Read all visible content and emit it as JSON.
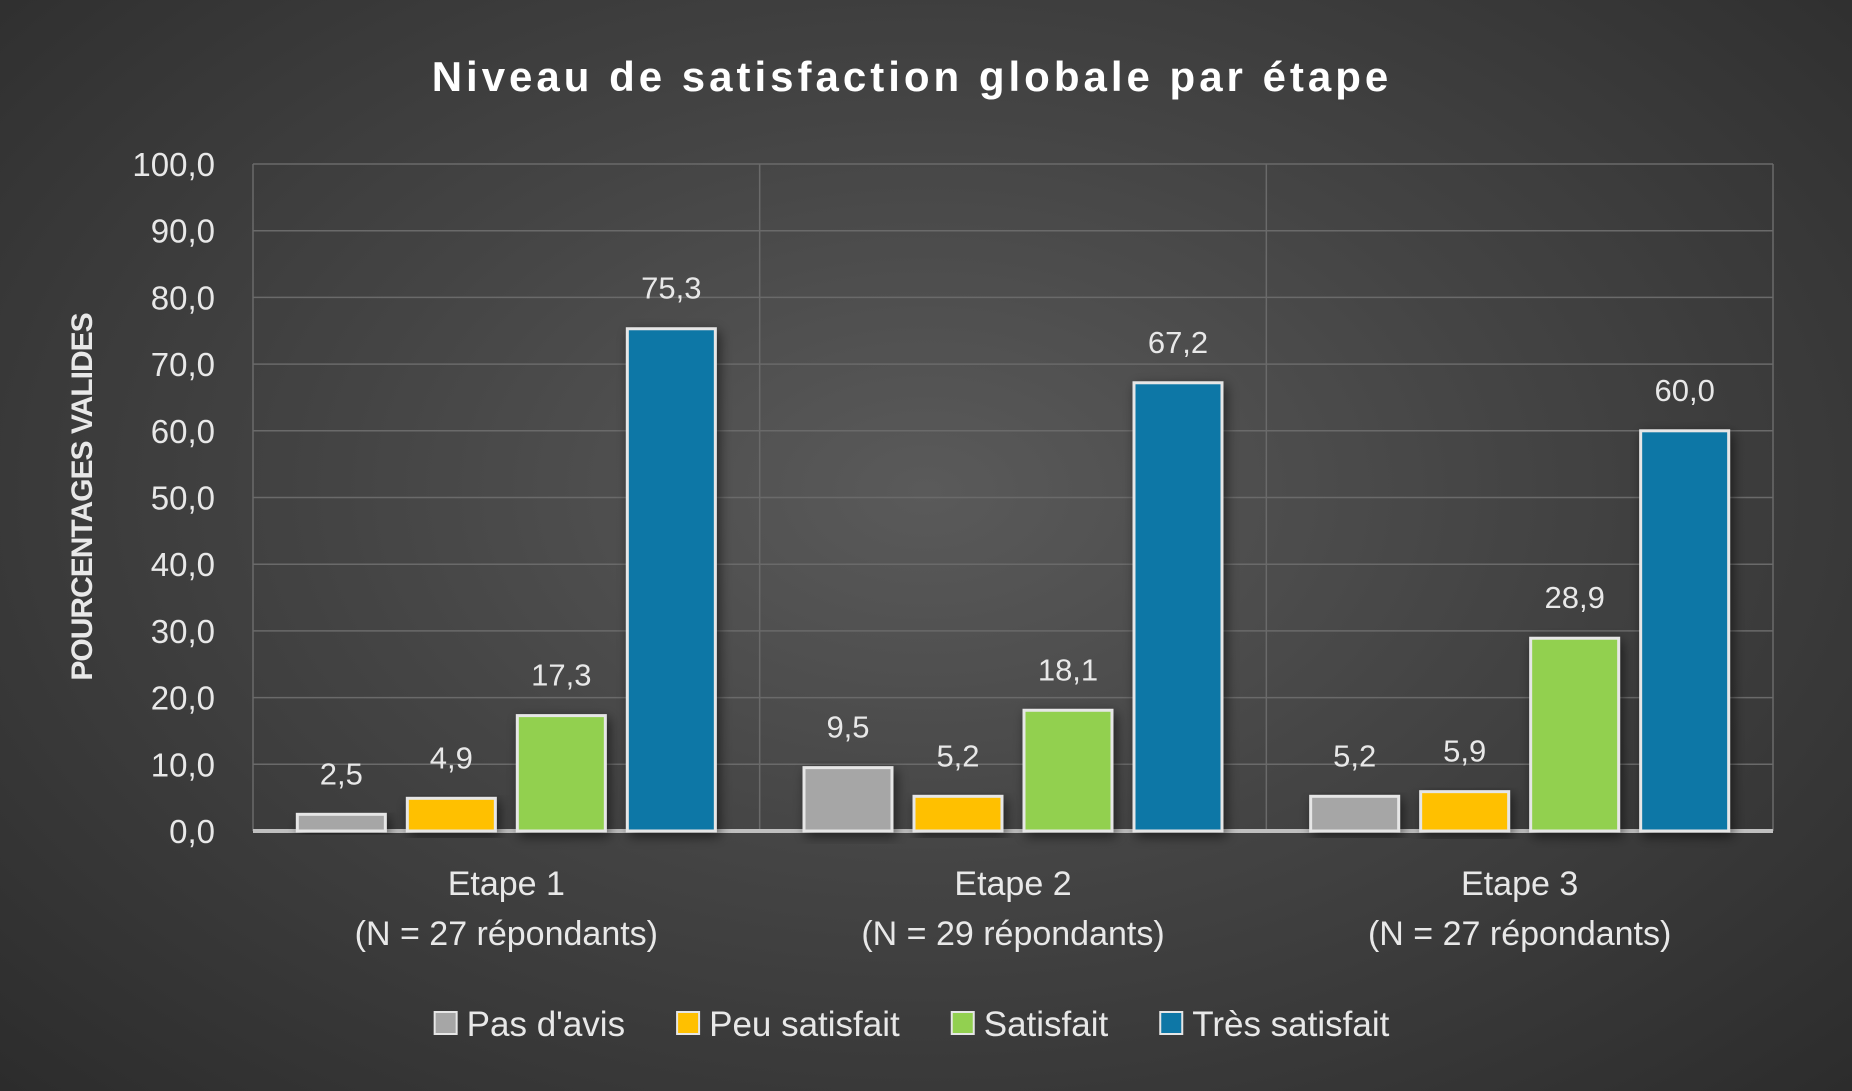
{
  "chart_data": {
    "type": "bar",
    "title": "Niveau de satisfaction globale par étape",
    "ylabel": "POURCENTAGES VALIDES",
    "xlabel": "",
    "ylim": [
      0,
      100
    ],
    "yticks": [
      "0,0",
      "10,0",
      "20,0",
      "30,0",
      "40,0",
      "50,0",
      "60,0",
      "70,0",
      "80,0",
      "90,0",
      "100,0"
    ],
    "categories": [
      [
        "Etape 1",
        "(N = 27 répondants)"
      ],
      [
        "Etape 2",
        "(N = 29 répondants)"
      ],
      [
        "Etape 3",
        "(N = 27 répondants)"
      ]
    ],
    "series": [
      {
        "name": "Pas d'avis",
        "color": "#A6A6A6",
        "values": [
          2.5,
          9.5,
          5.2
        ],
        "labels": [
          "2,5",
          "9,5",
          "5,2"
        ]
      },
      {
        "name": "Peu satisfait",
        "color": "#FFC000",
        "values": [
          4.9,
          5.2,
          5.9
        ],
        "labels": [
          "4,9",
          "5,2",
          "5,9"
        ]
      },
      {
        "name": "Satisfait",
        "color": "#92D050",
        "values": [
          17.3,
          18.1,
          28.9
        ],
        "labels": [
          "17,3",
          "18,1",
          "28,9"
        ]
      },
      {
        "name": "Très satisfait",
        "color": "#0E77A6",
        "values": [
          75.3,
          67.2,
          60.0
        ],
        "labels": [
          "75,3",
          "67,2",
          "60,0"
        ]
      }
    ],
    "grid": true,
    "legend": "bottom"
  },
  "colors": {
    "text": "#E8E8E8",
    "title": "#FFFFFF",
    "grid": "#6A6A6A",
    "baseline": "#BFBFBF"
  }
}
